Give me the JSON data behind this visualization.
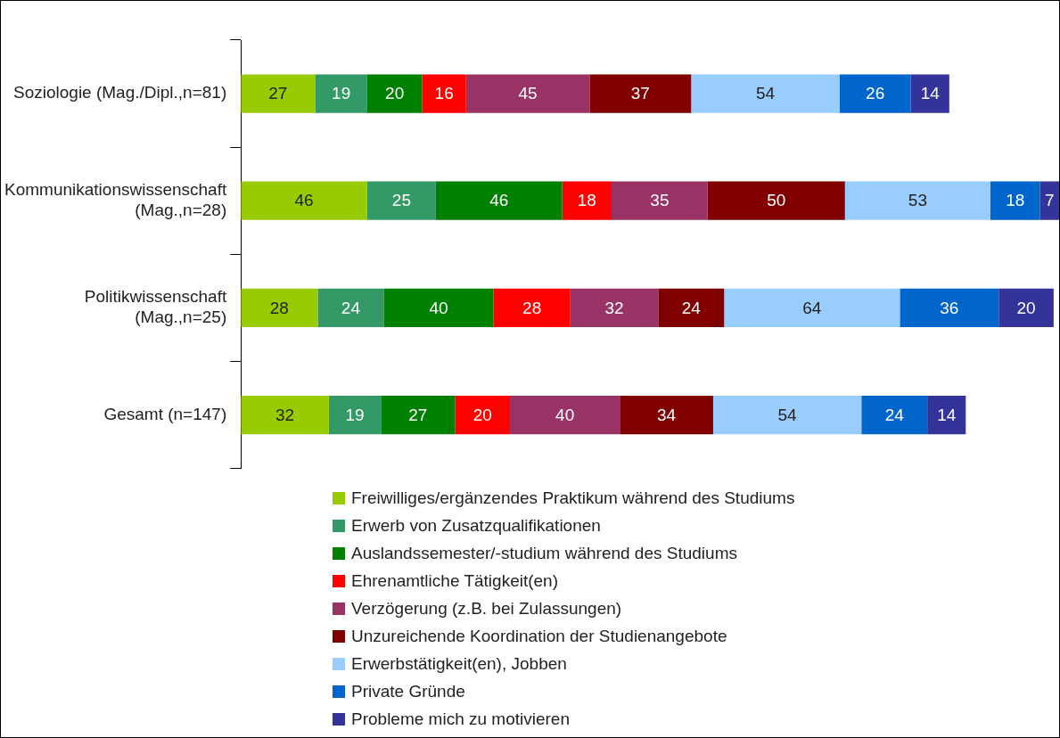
{
  "chart_data": {
    "type": "bar",
    "orientation": "horizontal",
    "stacked": true,
    "data_labels": true,
    "grid": false,
    "legend": "bottom",
    "tick_labels": "y",
    "categories": [
      "Soziologie (Mag./Dipl.,n=81)",
      "Kommunikationswissenschaft (Mag.,n=28)",
      "Politikwissenschaft (Mag.,n=25)",
      "Gesamt (n=147)"
    ],
    "series": [
      {
        "name": "Freiwilliges/ergänzendes Praktikum während des Studiums",
        "color": "#99cc00",
        "values": [
          27,
          46,
          28,
          32
        ]
      },
      {
        "name": "Erwerb von Zusatzqualifikationen",
        "color": "#339966",
        "values": [
          19,
          25,
          24,
          19
        ]
      },
      {
        "name": "Auslandssemester/-studium während des Studiums",
        "color": "#008000",
        "values": [
          20,
          46,
          40,
          27
        ]
      },
      {
        "name": "Ehrenamtliche Tätigkeit(en)",
        "color": "#ff0000",
        "values": [
          16,
          18,
          28,
          20
        ]
      },
      {
        "name": "Verzögerung (z.B. bei Zulassungen)",
        "color": "#993366",
        "values": [
          45,
          35,
          32,
          40
        ]
      },
      {
        "name": "Unzureichende Koordination der Studienangebote",
        "color": "#800000",
        "values": [
          37,
          50,
          24,
          34
        ]
      },
      {
        "name": "Erwerbstätigkeit(en), Jobben",
        "color": "#99ccff",
        "values": [
          54,
          53,
          64,
          54
        ]
      },
      {
        "name": "Private Gründe",
        "color": "#0066cc",
        "values": [
          26,
          18,
          36,
          24
        ]
      },
      {
        "name": "Probleme mich zu motivieren",
        "color": "#333399",
        "values": [
          14,
          7,
          20,
          14
        ]
      }
    ]
  }
}
